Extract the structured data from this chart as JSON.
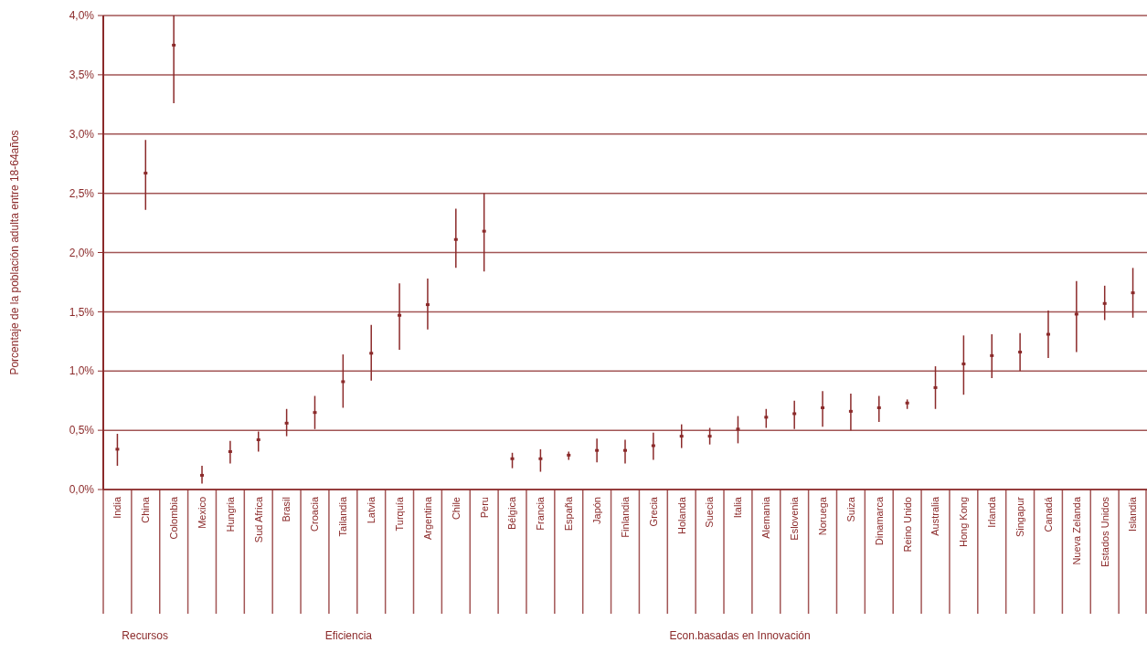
{
  "chart_data": {
    "type": "scatter",
    "ylabel": "Porcentaje de la población adulta entre 18-64años",
    "categories": [
      "India",
      "China",
      "Colombia",
      "Mexico",
      "Hungria",
      "Sud Africa",
      "Brasil",
      "Croacia",
      "Tailandia",
      "Latvia",
      "Turquía",
      "Argentina",
      "Chile",
      "Peru",
      "Bélgica",
      "Francia",
      "España",
      "Japón",
      "Finlandia",
      "Grecia",
      "Holanda",
      "Suecia",
      "Italia",
      "Alemania",
      "Eslovenia",
      "Noruega",
      "Suiza",
      "Dinamarca",
      "Reino Unido",
      "Australia",
      "Hong Kong",
      "Irlanda",
      "Singapur",
      "Canadá",
      "Nueva Zelanda",
      "Estados Unidos",
      "Islandia"
    ],
    "series": [
      {
        "color": "#8b2a2a",
        "values": [
          0.34,
          2.67,
          3.75,
          0.12,
          0.32,
          0.42,
          0.56,
          0.65,
          0.91,
          1.15,
          1.47,
          1.56,
          2.11,
          2.18,
          0.26,
          0.26,
          0.29,
          0.33,
          0.33,
          0.37,
          0.45,
          0.45,
          0.51,
          0.61,
          0.64,
          0.69,
          0.66,
          0.69,
          0.73,
          0.86,
          1.06,
          1.13,
          1.16,
          1.31,
          1.48,
          1.57,
          1.66
        ],
        "errors": [
          [
            0.2,
            0.47
          ],
          [
            2.36,
            2.95
          ],
          [
            3.26,
            4.0
          ],
          [
            0.05,
            0.2
          ],
          [
            0.22,
            0.41
          ],
          [
            0.32,
            0.49
          ],
          [
            0.45,
            0.68
          ],
          [
            0.51,
            0.79
          ],
          [
            0.69,
            1.14
          ],
          [
            0.92,
            1.39
          ],
          [
            1.18,
            1.74
          ],
          [
            1.35,
            1.78
          ],
          [
            1.87,
            2.37
          ],
          [
            1.84,
            2.5
          ],
          [
            0.18,
            0.31
          ],
          [
            0.15,
            0.34
          ],
          [
            0.25,
            0.32
          ],
          [
            0.23,
            0.43
          ],
          [
            0.22,
            0.42
          ],
          [
            0.25,
            0.48
          ],
          [
            0.35,
            0.55
          ],
          [
            0.38,
            0.52
          ],
          [
            0.39,
            0.62
          ],
          [
            0.52,
            0.68
          ],
          [
            0.51,
            0.75
          ],
          [
            0.53,
            0.83
          ],
          [
            0.5,
            0.81
          ],
          [
            0.57,
            0.79
          ],
          [
            0.68,
            0.76
          ],
          [
            0.68,
            1.04
          ],
          [
            0.8,
            1.3
          ],
          [
            0.94,
            1.31
          ],
          [
            1.0,
            1.32
          ],
          [
            1.11,
            1.51
          ],
          [
            1.16,
            1.76
          ],
          [
            1.43,
            1.72
          ],
          [
            1.45,
            1.87
          ]
        ]
      }
    ],
    "ylim": [
      0,
      4
    ],
    "yticks": [
      {
        "value": 0,
        "label": "0,0%"
      },
      {
        "value": 0.5,
        "label": "0,5%"
      },
      {
        "value": 1,
        "label": "1,0%"
      },
      {
        "value": 1.5,
        "label": "1,5%"
      },
      {
        "value": 2,
        "label": "2,0%"
      },
      {
        "value": 2.5,
        "label": "2,5%"
      },
      {
        "value": 3,
        "label": "3,0%"
      },
      {
        "value": 3.5,
        "label": "3,5%"
      },
      {
        "value": 4,
        "label": "4,0%"
      }
    ],
    "grid": "y",
    "annotations": [
      "Recursos",
      "Eficiencia",
      "Econ.basadas en Innovación"
    ]
  }
}
